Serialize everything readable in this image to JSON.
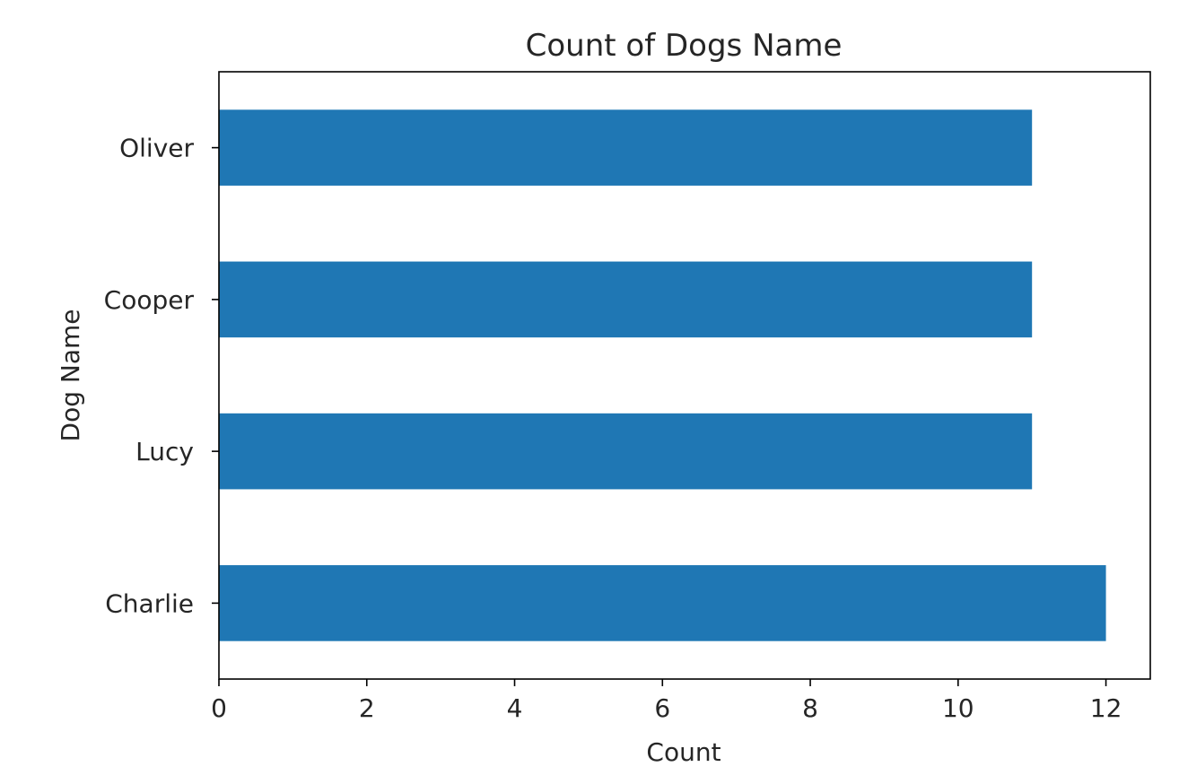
{
  "chart_data": {
    "type": "bar",
    "orientation": "horizontal",
    "title": "Count of Dogs Name",
    "xlabel": "Count",
    "ylabel": "Dog Name",
    "categories": [
      "Charlie",
      "Lucy",
      "Cooper",
      "Oliver"
    ],
    "values": [
      12,
      11,
      11,
      11
    ],
    "xlim": [
      0,
      12.6
    ],
    "xticks": [
      0,
      2,
      4,
      6,
      8,
      10,
      12
    ],
    "grid": false,
    "bar_color": "#1f77b4"
  }
}
